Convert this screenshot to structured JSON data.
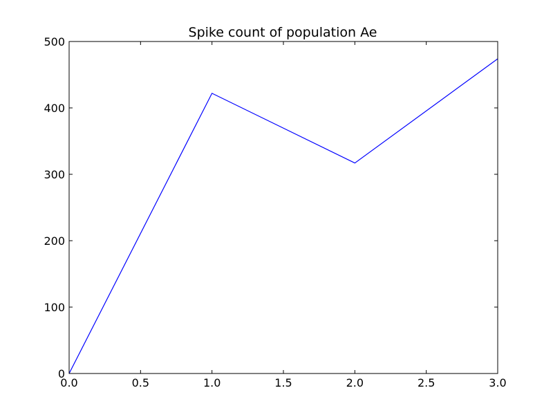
{
  "chart_data": {
    "type": "line",
    "title": "Spike count of population Ae",
    "xlabel": "",
    "ylabel": "",
    "xlim": [
      0,
      3
    ],
    "ylim": [
      0,
      500
    ],
    "x_ticks": [
      0,
      0.5,
      1,
      1.5,
      2,
      2.5,
      3
    ],
    "x_tick_labels": [
      "0.0",
      "0.5",
      "1.0",
      "1.5",
      "2.0",
      "2.5",
      "3.0"
    ],
    "y_ticks": [
      0,
      100,
      200,
      300,
      400,
      500
    ],
    "y_tick_labels": [
      "0",
      "100",
      "200",
      "300",
      "400",
      "500"
    ],
    "grid": false,
    "legend": "none",
    "series": [
      {
        "color": "#0000ff",
        "x": [
          0,
          1,
          2,
          3
        ],
        "values": [
          0,
          422,
          317,
          474
        ]
      }
    ]
  }
}
